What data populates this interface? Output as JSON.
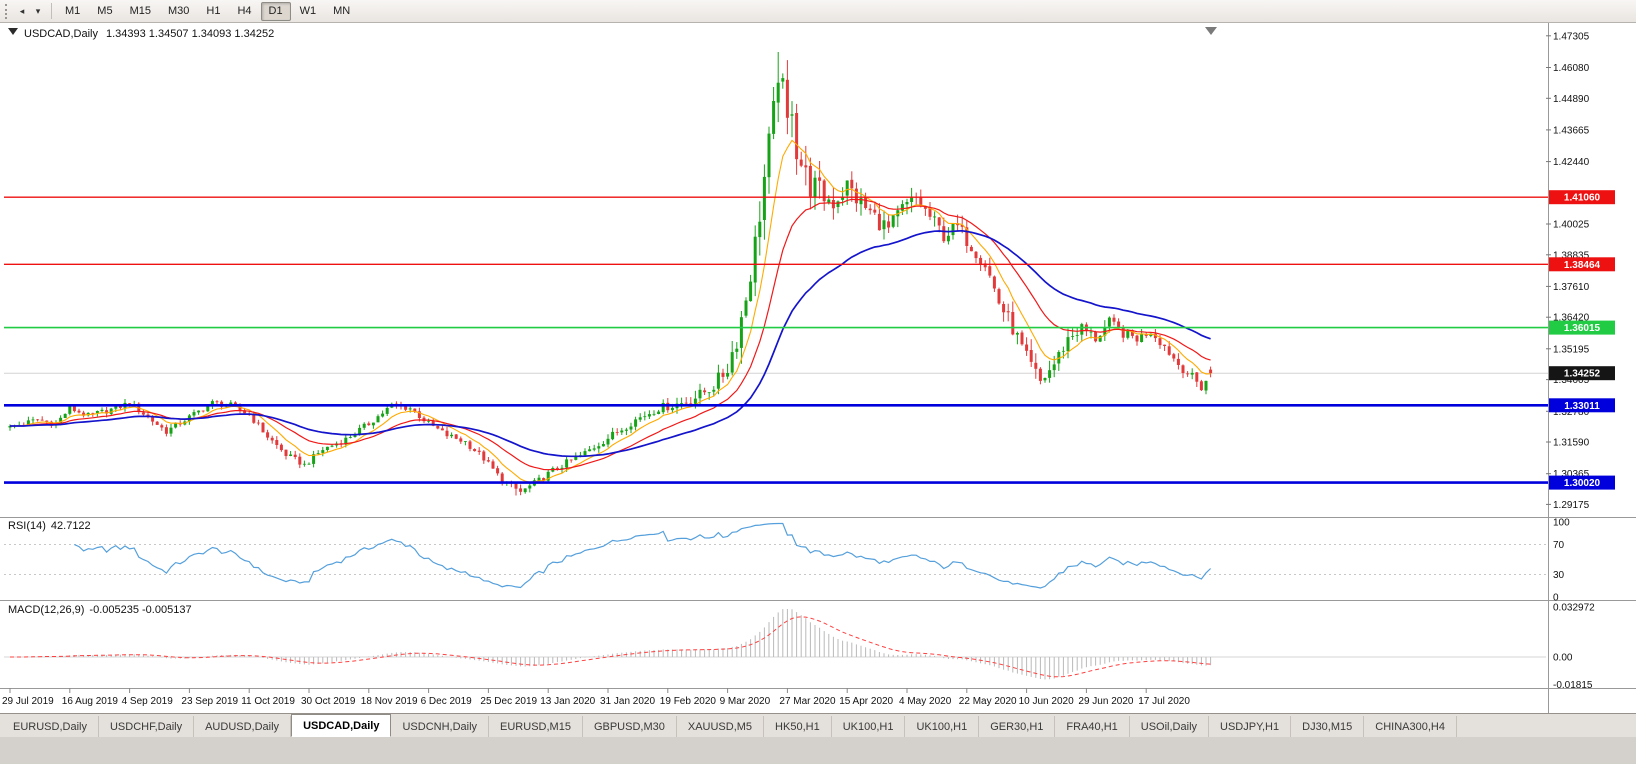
{
  "toolbar": {
    "timeframes": [
      "M1",
      "M5",
      "M15",
      "M30",
      "H1",
      "H4",
      "D1",
      "W1",
      "MN"
    ],
    "active_timeframe": "D1"
  },
  "chart": {
    "symbol": "USDCAD,Daily",
    "ohlc": "1.34393 1.34507 1.34093 1.34252"
  },
  "indicators": {
    "rsi": {
      "name": "RSI(14)",
      "value": "42.7122",
      "period": 14,
      "color": "#55a0dc",
      "scale_labels": [
        "100",
        "70",
        "30",
        "0"
      ],
      "scale_values": [
        100,
        70,
        30,
        0
      ],
      "level_lines": [
        70,
        30
      ]
    },
    "macd": {
      "name": "MACD(12,26,9)",
      "values": "-0.005235 -0.005137",
      "fast": 12,
      "slow": 26,
      "signal": 9,
      "scale_labels": [
        "0.032972",
        "0.00",
        "-0.01815"
      ],
      "scale_values": [
        0.032972,
        0,
        -0.01815
      ],
      "histogram_color": "#b9b9b9",
      "signal_color": "#ff4040"
    }
  },
  "price_axis": {
    "ticks": [
      1.47305,
      1.4608,
      1.4489,
      1.43665,
      1.4244,
      1.40025,
      1.38835,
      1.3761,
      1.3642,
      1.35195,
      1.34005,
      1.3278,
      1.3159,
      1.30365,
      1.29175
    ],
    "current_price": 1.34252,
    "current_price_label": "1.34252",
    "current_badge_color": "#151515"
  },
  "levels": [
    {
      "value": 1.4106,
      "label": "1.41060",
      "color": "#ee1111",
      "width": 1.3
    },
    {
      "value": 1.38464,
      "label": "1.38464",
      "color": "#ee1111",
      "width": 1.3
    },
    {
      "value": 1.36015,
      "label": "1.36015",
      "color": "#21cc44",
      "width": 1.6
    },
    {
      "value": 1.33011,
      "label": "1.33011",
      "color": "#0000dd",
      "width": 2.6
    },
    {
      "value": 1.3002,
      "label": "1.30020",
      "color": "#0000dd",
      "width": 2.6
    }
  ],
  "date_axis": [
    {
      "bar": 0,
      "label": "29 Jul 2019"
    },
    {
      "bar": 13,
      "label": "16 Aug 2019"
    },
    {
      "bar": 26,
      "label": "4 Sep 2019"
    },
    {
      "bar": 39,
      "label": "23 Sep 2019"
    },
    {
      "bar": 52,
      "label": "11 Oct 2019"
    },
    {
      "bar": 65,
      "label": "30 Oct 2019"
    },
    {
      "bar": 78,
      "label": "18 Nov 2019"
    },
    {
      "bar": 91,
      "label": "6 Dec 2019"
    },
    {
      "bar": 104,
      "label": "25 Dec 2019"
    },
    {
      "bar": 117,
      "label": "13 Jan 2020"
    },
    {
      "bar": 130,
      "label": "31 Jan 2020"
    },
    {
      "bar": 143,
      "label": "19 Feb 2020"
    },
    {
      "bar": 156,
      "label": "9 Mar 2020"
    },
    {
      "bar": 169,
      "label": "27 Mar 2020"
    },
    {
      "bar": 182,
      "label": "15 Apr 2020"
    },
    {
      "bar": 195,
      "label": "4 May 2020"
    },
    {
      "bar": 208,
      "label": "22 May 2020"
    },
    {
      "bar": 221,
      "label": "10 Jun 2020"
    },
    {
      "bar": 234,
      "label": "29 Jun 2020"
    },
    {
      "bar": 247,
      "label": "17 Jul 2020"
    }
  ],
  "tabs": {
    "items": [
      "EURUSD,Daily",
      "USDCHF,Daily",
      "AUDUSD,Daily",
      "USDCAD,Daily",
      "USDCNH,Daily",
      "EURUSD,M15",
      "GBPUSD,M30",
      "XAUUSD,M5",
      "HK50,H1",
      "UK100,H1",
      "UK100,H1",
      "GER30,H1",
      "FRA40,H1",
      "USOil,Daily",
      "USDJPY,H1",
      "DJ30,M15",
      "CHINA300,H4"
    ],
    "active_index": 3
  },
  "chart_data": {
    "type": "candlestick",
    "symbol": "USDCAD",
    "timeframe": "Daily",
    "num_bars": 262,
    "price_range": [
      1.28689,
      1.47724
    ],
    "up_color": "#17a317",
    "down_color": "#e23a3a",
    "close_anchors": [
      [
        0,
        1.3215
      ],
      [
        6,
        1.3245
      ],
      [
        10,
        1.323
      ],
      [
        13,
        1.329
      ],
      [
        17,
        1.326
      ],
      [
        22,
        1.3285
      ],
      [
        26,
        1.331
      ],
      [
        30,
        1.3255
      ],
      [
        34,
        1.32
      ],
      [
        39,
        1.3255
      ],
      [
        44,
        1.331
      ],
      [
        48,
        1.33
      ],
      [
        52,
        1.3265
      ],
      [
        56,
        1.318
      ],
      [
        60,
        1.311
      ],
      [
        64,
        1.307
      ],
      [
        68,
        1.313
      ],
      [
        73,
        1.317
      ],
      [
        78,
        1.323
      ],
      [
        83,
        1.33
      ],
      [
        87,
        1.329
      ],
      [
        91,
        1.323
      ],
      [
        95,
        1.3185
      ],
      [
        99,
        1.316
      ],
      [
        103,
        1.3095
      ],
      [
        107,
        1.301
      ],
      [
        111,
        1.2965
      ],
      [
        115,
        1.301
      ],
      [
        119,
        1.306
      ],
      [
        124,
        1.3105
      ],
      [
        130,
        1.3175
      ],
      [
        136,
        1.3245
      ],
      [
        141,
        1.329
      ],
      [
        146,
        1.331
      ],
      [
        150,
        1.334
      ],
      [
        154,
        1.3395
      ],
      [
        156,
        1.345
      ],
      [
        158,
        1.356
      ],
      [
        160,
        1.372
      ],
      [
        162,
        1.392
      ],
      [
        164,
        1.418
      ],
      [
        166,
        1.442
      ],
      [
        167,
        1.46
      ],
      [
        168,
        1.45
      ],
      [
        169,
        1.438
      ],
      [
        170,
        1.448
      ],
      [
        171,
        1.43
      ],
      [
        173,
        1.418
      ],
      [
        176,
        1.412
      ],
      [
        179,
        1.409
      ],
      [
        182,
        1.415
      ],
      [
        185,
        1.408
      ],
      [
        188,
        1.403
      ],
      [
        191,
        1.398
      ],
      [
        194,
        1.406
      ],
      [
        197,
        1.41
      ],
      [
        200,
        1.403
      ],
      [
        203,
        1.396
      ],
      [
        206,
        1.399
      ],
      [
        209,
        1.392
      ],
      [
        212,
        1.385
      ],
      [
        215,
        1.37
      ],
      [
        218,
        1.36
      ],
      [
        221,
        1.348
      ],
      [
        224,
        1.339
      ],
      [
        227,
        1.346
      ],
      [
        230,
        1.356
      ],
      [
        233,
        1.36
      ],
      [
        236,
        1.356
      ],
      [
        239,
        1.362
      ],
      [
        242,
        1.358
      ],
      [
        245,
        1.356
      ],
      [
        248,
        1.359
      ],
      [
        251,
        1.353
      ],
      [
        254,
        1.346
      ],
      [
        257,
        1.341
      ],
      [
        259,
        1.337
      ],
      [
        261,
        1.3425
      ]
    ],
    "volatility_anchors": [
      [
        0,
        0.0022
      ],
      [
        100,
        0.0022
      ],
      [
        140,
        0.0028
      ],
      [
        150,
        0.0045
      ],
      [
        156,
        0.007
      ],
      [
        162,
        0.011
      ],
      [
        168,
        0.013
      ],
      [
        172,
        0.013
      ],
      [
        178,
        0.009
      ],
      [
        186,
        0.007
      ],
      [
        198,
        0.0055
      ],
      [
        212,
        0.0055
      ],
      [
        222,
        0.006
      ],
      [
        232,
        0.0045
      ],
      [
        246,
        0.0035
      ],
      [
        261,
        0.003
      ]
    ],
    "spike_high": {
      "bar": 167,
      "high": 1.4668
    },
    "extreme_low": {
      "bar": 110,
      "low": 1.2952
    },
    "last_candle": {
      "open": 1.34393,
      "high": 1.34507,
      "low": 1.34093,
      "close": 1.34252
    },
    "moving_averages": [
      {
        "period": 8,
        "color": "#ffaa00",
        "width": 1.1
      },
      {
        "period": 20,
        "color": "#f01818",
        "width": 1.2
      },
      {
        "period": 45,
        "color": "#1414cc",
        "width": 1.7
      }
    ]
  }
}
